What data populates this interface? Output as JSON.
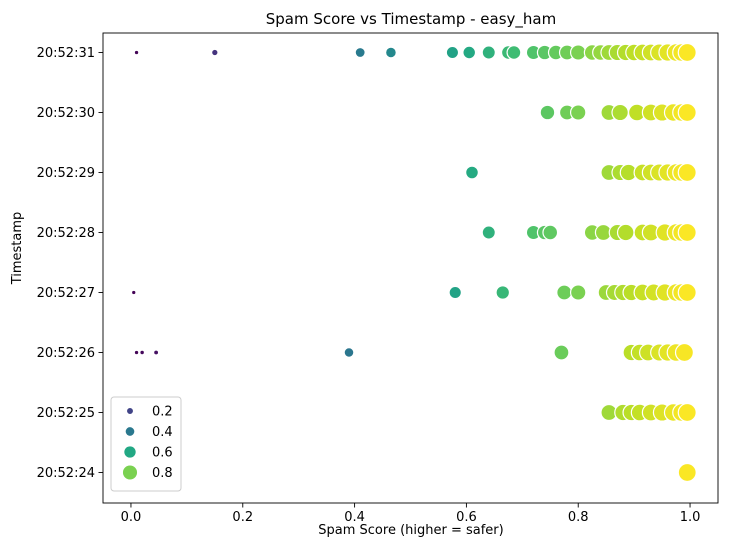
{
  "chart_data": {
    "type": "scatter",
    "title": "Spam Score vs Timestamp - easy_ham",
    "xlabel": "Spam Score (higher = safer)",
    "ylabel": "Timestamp",
    "xlim": [
      -0.05,
      1.05
    ],
    "x_ticks": [
      "0.0",
      "0.2",
      "0.4",
      "0.6",
      "0.8",
      "1.0"
    ],
    "y_categories": [
      "20:52:24",
      "20:52:25",
      "20:52:26",
      "20:52:27",
      "20:52:28",
      "20:52:29",
      "20:52:30",
      "20:52:31"
    ],
    "colormap": "viridis",
    "hue_and_size": "spam score",
    "legend": {
      "placement": "lower-left",
      "entries": [
        {
          "label": "0.2",
          "value": 0.2
        },
        {
          "label": "0.4",
          "value": 0.4
        },
        {
          "label": "0.6",
          "value": 0.6
        },
        {
          "label": "0.8",
          "value": 0.8
        }
      ]
    },
    "points": [
      {
        "t": "20:52:31",
        "x": [
          0.01,
          0.15,
          0.41,
          0.465,
          0.575,
          0.605,
          0.64,
          0.675,
          0.685,
          0.72,
          0.74,
          0.76,
          0.78,
          0.8,
          0.825,
          0.84,
          0.855,
          0.87,
          0.885,
          0.9,
          0.915,
          0.93,
          0.945,
          0.96,
          0.975,
          0.985,
          0.995
        ]
      },
      {
        "t": "20:52:30",
        "x": [
          0.745,
          0.78,
          0.8,
          0.855,
          0.875,
          0.905,
          0.93,
          0.95,
          0.97,
          0.985,
          0.995
        ]
      },
      {
        "t": "20:52:29",
        "x": [
          0.61,
          0.855,
          0.875,
          0.89,
          0.915,
          0.93,
          0.945,
          0.96,
          0.975,
          0.985,
          0.995
        ]
      },
      {
        "t": "20:52:28",
        "x": [
          0.64,
          0.72,
          0.74,
          0.75,
          0.825,
          0.845,
          0.87,
          0.885,
          0.915,
          0.93,
          0.955,
          0.975,
          0.985,
          0.995
        ]
      },
      {
        "t": "20:52:27",
        "x": [
          0.005,
          0.58,
          0.665,
          0.775,
          0.8,
          0.85,
          0.865,
          0.88,
          0.895,
          0.915,
          0.935,
          0.955,
          0.975,
          0.985,
          0.995
        ]
      },
      {
        "t": "20:52:26",
        "x": [
          0.01,
          0.02,
          0.045,
          0.39,
          0.77,
          0.895,
          0.91,
          0.925,
          0.945,
          0.96,
          0.975,
          0.99
        ]
      },
      {
        "t": "20:52:25",
        "x": [
          0.855,
          0.88,
          0.895,
          0.91,
          0.93,
          0.95,
          0.97,
          0.985,
          0.995
        ]
      },
      {
        "t": "20:52:24",
        "x": [
          0.995
        ]
      }
    ]
  }
}
